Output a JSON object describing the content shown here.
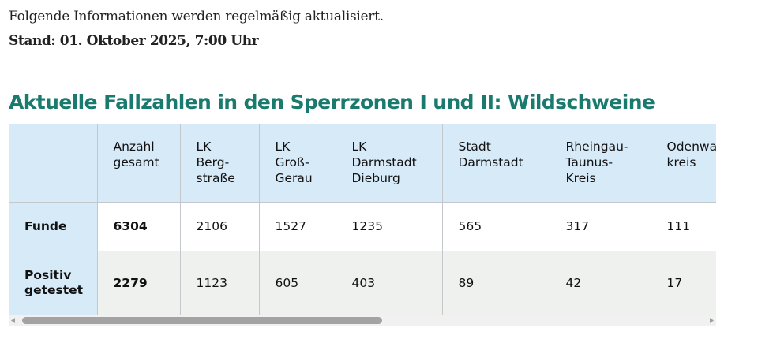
{
  "intro": "Folgende Informationen werden regelmäßig aktualisiert.",
  "stand": "Stand: 01. Oktober 2025, 7:00 Uhr",
  "heading": "Aktuelle Fallzahlen in den Sperrzonen I und II: Wildschweine",
  "table": {
    "header": [
      [
        "Anzahl",
        "gesamt"
      ],
      [
        "LK",
        "Berg-",
        "straße"
      ],
      [
        "LK",
        "Groß-",
        "Gerau"
      ],
      [
        "LK",
        "Darmstadt",
        "Dieburg"
      ],
      [
        "Stadt",
        "Darmstadt"
      ],
      [
        "Rheingau-",
        "Taunus-",
        "Kreis"
      ],
      [
        "Odenwald-",
        "kreis"
      ]
    ],
    "rows": [
      {
        "label": "Funde",
        "cells": [
          6304,
          2106,
          1527,
          1235,
          565,
          317,
          111
        ]
      },
      {
        "label": [
          "Positiv",
          "getestet"
        ],
        "cells": [
          2279,
          1123,
          605,
          403,
          89,
          42,
          17
        ]
      }
    ]
  }
}
